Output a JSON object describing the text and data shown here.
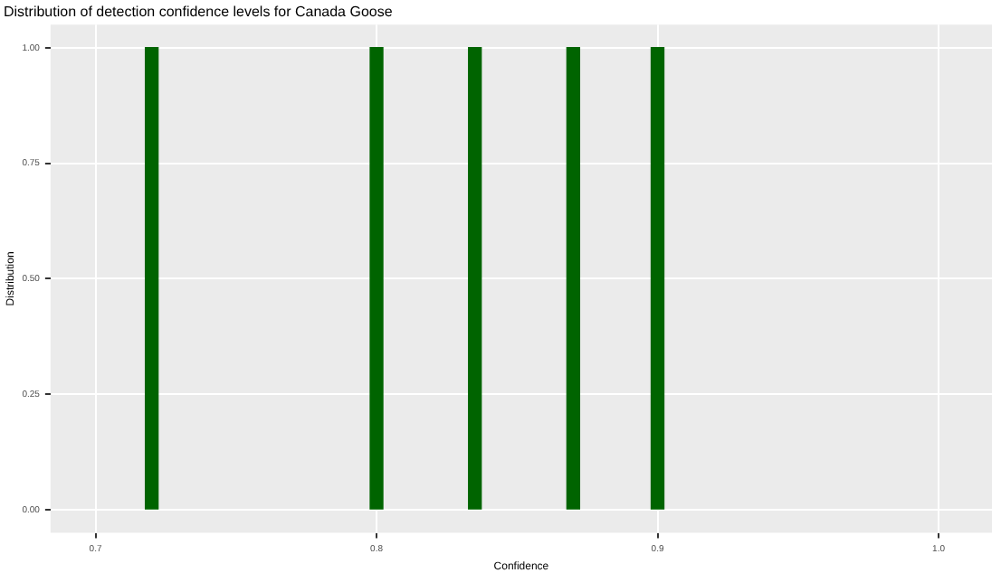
{
  "chart_data": {
    "type": "bar",
    "title": "Distribution of detection confidence levels for Canada Goose",
    "xlabel": "Confidence",
    "ylabel": "Distribution",
    "x": [
      0.72,
      0.8,
      0.835,
      0.87,
      0.9
    ],
    "values": [
      1,
      1,
      1,
      1,
      1
    ],
    "color": "#006400",
    "xlim": [
      0.684,
      1.019
    ],
    "xticks": [
      0.7,
      0.8,
      0.9,
      {
        "value": 1,
        "label": "1.0"
      }
    ],
    "ylim": [
      -0.05,
      1.05
    ],
    "yticks": [
      {
        "value": 0,
        "label": "0.00"
      },
      {
        "value": 0.25,
        "label": "0.25"
      },
      {
        "value": 0.5,
        "label": "0.50"
      },
      {
        "value": 0.75,
        "label": "0.75"
      },
      {
        "value": 1,
        "label": "1.00"
      }
    ],
    "grid": true,
    "legend": false
  }
}
